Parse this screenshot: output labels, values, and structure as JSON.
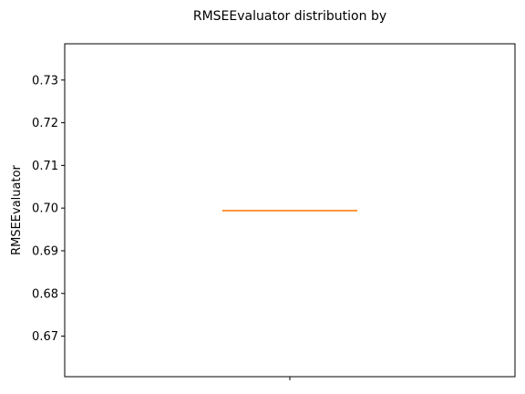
{
  "chart_data": {
    "type": "box",
    "title": "RMSEEvaluator distribution by",
    "xlabel": "",
    "ylabel": "RMSEEvaluator",
    "ylim": [
      0.6605,
      0.7385
    ],
    "yticks": [
      0.67,
      0.68,
      0.69,
      0.7,
      0.71,
      0.72,
      0.73
    ],
    "ytick_labels": [
      "0.67",
      "0.68",
      "0.69",
      "0.70",
      "0.71",
      "0.72",
      "0.73"
    ],
    "categories": [
      ""
    ],
    "boxes": [
      {
        "category": "",
        "min": 0.6994,
        "q1": 0.6994,
        "median": 0.6994,
        "q3": 0.6994,
        "max": 0.6994
      }
    ],
    "grid": false,
    "colors": {
      "box": "#1f77b4",
      "median": "#ff7f0e",
      "axes": "#000000"
    }
  }
}
